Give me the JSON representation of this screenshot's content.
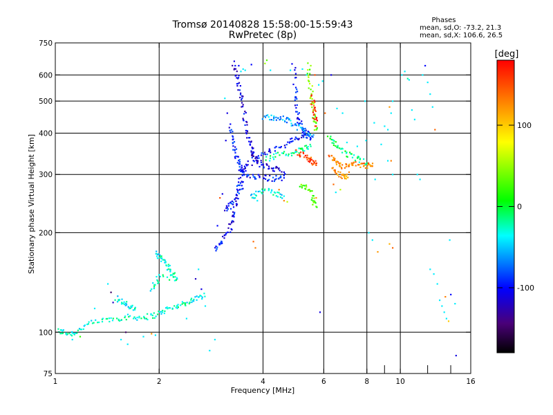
{
  "title_lines": [
    "Tromsø 20140828 15:58:00-15:59:43",
    "RwPretec (8p)"
  ],
  "phases_box": {
    "heading": "Phases",
    "line1": "mean, sd,O: -73.2, 21.3",
    "line2": "mean, sd,X: 106.6, 26.5"
  },
  "chart_data": {
    "type": "scatter",
    "xlabel": "Frequency [MHz]",
    "ylabel": "Stationary phase Virtual Height [km]",
    "x_scale": "log",
    "y_scale": "log",
    "xlim": [
      1,
      16
    ],
    "ylim": [
      75,
      750
    ],
    "xticks": [
      1,
      2,
      4,
      6,
      8,
      10,
      16
    ],
    "xminor": [
      9,
      12,
      14
    ],
    "yticks": [
      75,
      100,
      200,
      300,
      400,
      500,
      600,
      750
    ],
    "grid_x": [
      2,
      4,
      6,
      8,
      10
    ],
    "grid_y": [
      100,
      200,
      300,
      400,
      500,
      600
    ],
    "grid": true,
    "colorbar": {
      "label": "[deg]",
      "range": [
        -180,
        180
      ],
      "ticks": [
        100,
        0,
        -100
      ],
      "colormap": "rainbow"
    },
    "traces": [
      {
        "name": "",
        "color_deg": -30,
        "points": [
          [
            1.02,
            101
          ],
          [
            1.05,
            100
          ],
          [
            1.1,
            99
          ],
          [
            1.15,
            100
          ],
          [
            1.2,
            104
          ],
          [
            1.3,
            107
          ],
          [
            1.4,
            109
          ],
          [
            1.5,
            110
          ],
          [
            1.6,
            111
          ],
          [
            1.7,
            111
          ],
          [
            1.8,
            111
          ],
          [
            1.9,
            112
          ],
          [
            2.0,
            114
          ],
          [
            2.1,
            117
          ],
          [
            2.2,
            119
          ],
          [
            2.3,
            121
          ],
          [
            2.4,
            123
          ],
          [
            2.5,
            125
          ],
          [
            2.6,
            127
          ],
          [
            2.7,
            131
          ]
        ]
      },
      {
        "name": "",
        "color_deg": -40,
        "points": [
          [
            1.5,
            127
          ],
          [
            1.55,
            124
          ],
          [
            1.6,
            121
          ],
          [
            1.65,
            119
          ],
          [
            1.7,
            117
          ]
        ]
      },
      {
        "name": "",
        "color_deg": -30,
        "points": [
          [
            1.95,
            175
          ],
          [
            2.0,
            170
          ],
          [
            2.05,
            165
          ],
          [
            2.1,
            160
          ],
          [
            2.15,
            154
          ],
          [
            2.2,
            148
          ],
          [
            2.25,
            143
          ],
          [
            2.0,
            150
          ],
          [
            1.95,
            140
          ],
          [
            1.9,
            135
          ]
        ]
      },
      {
        "name": "",
        "color_deg": -100,
        "points": [
          [
            2.9,
            178
          ],
          [
            3.0,
            185
          ],
          [
            3.1,
            195
          ],
          [
            3.2,
            205
          ],
          [
            3.25,
            215
          ],
          [
            3.3,
            230
          ],
          [
            3.35,
            250
          ],
          [
            3.4,
            275
          ],
          [
            3.45,
            295
          ],
          [
            3.5,
            310
          ],
          [
            3.6,
            320
          ],
          [
            3.8,
            335
          ],
          [
            4.0,
            345
          ],
          [
            4.2,
            355
          ],
          [
            4.5,
            365
          ],
          [
            4.8,
            375
          ],
          [
            5.0,
            385
          ],
          [
            5.2,
            395
          ],
          [
            5.4,
            405
          ]
        ]
      },
      {
        "name": "",
        "color_deg": -110,
        "points": [
          [
            3.3,
            640
          ],
          [
            3.35,
            600
          ],
          [
            3.4,
            560
          ],
          [
            3.45,
            520
          ],
          [
            3.5,
            480
          ],
          [
            3.55,
            440
          ],
          [
            3.6,
            405
          ],
          [
            3.65,
            380
          ],
          [
            3.7,
            360
          ],
          [
            3.75,
            345
          ],
          [
            3.8,
            335
          ],
          [
            3.9,
            325
          ],
          [
            4.0,
            320
          ],
          [
            4.2,
            315
          ],
          [
            4.4,
            310
          ],
          [
            4.6,
            305
          ]
        ]
      },
      {
        "name": "",
        "color_deg": -95,
        "points": [
          [
            3.2,
            420
          ],
          [
            3.25,
            390
          ],
          [
            3.3,
            360
          ],
          [
            3.35,
            340
          ],
          [
            3.4,
            325
          ],
          [
            3.45,
            315
          ],
          [
            3.5,
            305
          ],
          [
            3.6,
            300
          ],
          [
            3.8,
            296
          ],
          [
            4.0,
            294
          ],
          [
            4.2,
            292
          ],
          [
            4.4,
            292
          ],
          [
            4.6,
            293
          ]
        ]
      },
      {
        "name": "",
        "color_deg": -95,
        "points": [
          [
            3.1,
            235
          ],
          [
            3.2,
            240
          ],
          [
            3.3,
            250
          ],
          [
            3.4,
            265
          ],
          [
            3.5,
            285
          ]
        ]
      },
      {
        "name": "",
        "color_deg": -95,
        "points": [
          [
            4.9,
            640
          ],
          [
            4.95,
            560
          ],
          [
            5.0,
            500
          ],
          [
            5.05,
            460
          ],
          [
            5.1,
            430
          ],
          [
            5.2,
            410
          ],
          [
            5.3,
            395
          ],
          [
            5.5,
            385
          ]
        ]
      },
      {
        "name": "",
        "color_deg": -60,
        "points": [
          [
            4.0,
            445
          ],
          [
            4.2,
            448
          ],
          [
            4.4,
            445
          ],
          [
            4.6,
            440
          ],
          [
            4.8,
            435
          ],
          [
            5.0,
            420
          ],
          [
            5.2,
            410
          ],
          [
            5.4,
            400
          ],
          [
            5.6,
            395
          ]
        ]
      },
      {
        "name": "",
        "color_deg": -20,
        "points": [
          [
            4.1,
            335
          ],
          [
            4.3,
            340
          ],
          [
            4.6,
            345
          ],
          [
            4.9,
            350
          ],
          [
            5.1,
            355
          ],
          [
            5.3,
            360
          ],
          [
            5.5,
            365
          ]
        ]
      },
      {
        "name": "",
        "color_deg": 40,
        "points": [
          [
            5.4,
            640
          ],
          [
            5.45,
            590
          ],
          [
            5.5,
            540
          ],
          [
            5.55,
            500
          ],
          [
            5.6,
            460
          ],
          [
            5.65,
            430
          ],
          [
            5.7,
            410
          ]
        ]
      },
      {
        "name": "",
        "color_deg": 150,
        "points": [
          [
            5.0,
            350
          ],
          [
            5.2,
            345
          ],
          [
            5.4,
            335
          ],
          [
            5.5,
            330
          ],
          [
            5.6,
            325
          ],
          [
            5.7,
            320
          ]
        ]
      },
      {
        "name": "",
        "color_deg": 160,
        "points": [
          [
            5.55,
            520
          ],
          [
            5.6,
            480
          ],
          [
            5.65,
            450
          ],
          [
            5.7,
            420
          ]
        ]
      },
      {
        "name": "",
        "color_deg": 130,
        "points": [
          [
            6.2,
            340
          ],
          [
            6.4,
            330
          ],
          [
            6.6,
            322
          ],
          [
            6.8,
            318
          ],
          [
            7.0,
            318
          ],
          [
            7.3,
            322
          ],
          [
            7.6,
            320
          ],
          [
            7.9,
            318
          ],
          [
            8.1,
            320
          ],
          [
            8.3,
            318
          ]
        ]
      },
      {
        "name": "",
        "color_deg": -10,
        "points": [
          [
            6.2,
            390
          ],
          [
            6.4,
            375
          ],
          [
            6.6,
            365
          ],
          [
            6.9,
            350
          ],
          [
            7.2,
            340
          ],
          [
            7.6,
            330
          ],
          [
            8.0,
            325
          ]
        ]
      },
      {
        "name": "",
        "color_deg": 120,
        "points": [
          [
            6.3,
            310
          ],
          [
            6.5,
            305
          ],
          [
            6.7,
            298
          ],
          [
            6.9,
            295
          ],
          [
            7.0,
            300
          ]
        ]
      },
      {
        "name": "",
        "color_deg": -35,
        "points": [
          [
            3.7,
            255
          ],
          [
            3.8,
            262
          ],
          [
            4.0,
            270
          ],
          [
            4.2,
            265
          ],
          [
            4.4,
            262
          ],
          [
            4.6,
            258
          ]
        ]
      },
      {
        "name": "",
        "color_deg": 30,
        "points": [
          [
            5.1,
            280
          ],
          [
            5.3,
            275
          ],
          [
            5.5,
            265
          ],
          [
            5.6,
            250
          ],
          [
            5.7,
            240
          ]
        ]
      }
    ],
    "points": [
      [
        1.12,
        95,
        -40
      ],
      [
        1.18,
        97,
        20
      ],
      [
        1.3,
        118,
        -40
      ],
      [
        1.42,
        140,
        -40
      ],
      [
        1.45,
        132,
        -150
      ],
      [
        1.47,
        123,
        -120
      ],
      [
        1.55,
        95,
        -40
      ],
      [
        1.6,
        100,
        -150
      ],
      [
        1.62,
        92,
        -40
      ],
      [
        1.7,
        118,
        -10
      ],
      [
        1.8,
        97,
        -40
      ],
      [
        1.9,
        99,
        120
      ],
      [
        1.95,
        98,
        -40
      ],
      [
        2.4,
        110,
        -40
      ],
      [
        2.55,
        145,
        -120
      ],
      [
        2.6,
        155,
        -40
      ],
      [
        2.65,
        135,
        -110
      ],
      [
        2.8,
        88,
        -40
      ],
      [
        2.9,
        95,
        -40
      ],
      [
        2.72,
        120,
        -40
      ],
      [
        2.95,
        210,
        -100
      ],
      [
        3.0,
        255,
        150
      ],
      [
        3.05,
        262,
        -110
      ],
      [
        3.12,
        380,
        -110
      ],
      [
        3.1,
        510,
        -40
      ],
      [
        3.15,
        460,
        -110
      ],
      [
        3.3,
        660,
        -110
      ],
      [
        3.4,
        640,
        -100
      ],
      [
        3.45,
        615,
        -40
      ],
      [
        3.5,
        625,
        -40
      ],
      [
        3.55,
        620,
        -40
      ],
      [
        3.7,
        645,
        -100
      ],
      [
        3.75,
        188,
        140
      ],
      [
        3.8,
        180,
        130
      ],
      [
        3.85,
        250,
        -40
      ],
      [
        4.05,
        650,
        50
      ],
      [
        4.1,
        665,
        30
      ],
      [
        4.2,
        620,
        -40
      ],
      [
        4.3,
        450,
        -40
      ],
      [
        4.45,
        270,
        130
      ],
      [
        4.6,
        250,
        130
      ],
      [
        4.7,
        248,
        60
      ],
      [
        4.8,
        620,
        -40
      ],
      [
        5.2,
        625,
        -40
      ],
      [
        5.35,
        600,
        -40
      ],
      [
        5.5,
        640,
        50
      ],
      [
        5.5,
        490,
        130
      ],
      [
        5.6,
        470,
        130
      ],
      [
        5.65,
        600,
        150
      ],
      [
        5.8,
        560,
        -40
      ],
      [
        5.95,
        575,
        -40
      ],
      [
        5.85,
        115,
        -110
      ],
      [
        5.7,
        255,
        120
      ],
      [
        6.3,
        600,
        -110
      ],
      [
        6.05,
        460,
        140
      ],
      [
        6.4,
        280,
        140
      ],
      [
        6.5,
        265,
        -40
      ],
      [
        6.7,
        270,
        60
      ],
      [
        6.55,
        475,
        -40
      ],
      [
        6.8,
        460,
        -40
      ],
      [
        7.0,
        375,
        -40
      ],
      [
        7.1,
        305,
        130
      ],
      [
        7.5,
        365,
        -40
      ],
      [
        7.55,
        340,
        -20
      ],
      [
        7.9,
        500,
        -40
      ],
      [
        7.95,
        380,
        -40
      ],
      [
        8.4,
        430,
        -40
      ],
      [
        8.1,
        200,
        -40
      ],
      [
        8.3,
        190,
        -40
      ],
      [
        8.45,
        290,
        -40
      ],
      [
        8.6,
        175,
        120
      ],
      [
        8.8,
        370,
        -40
      ],
      [
        9.2,
        410,
        -40
      ],
      [
        9.3,
        480,
        120
      ],
      [
        9.4,
        460,
        -40
      ],
      [
        9.5,
        500,
        -40
      ],
      [
        9.3,
        185,
        110
      ],
      [
        9.5,
        180,
        140
      ],
      [
        9.0,
        420,
        -40
      ],
      [
        9.2,
        330,
        -40
      ],
      [
        9.4,
        330,
        130
      ],
      [
        9.5,
        300,
        -40
      ],
      [
        10.1,
        600,
        -40
      ],
      [
        10.3,
        615,
        -40
      ],
      [
        10.5,
        585,
        -20
      ],
      [
        10.6,
        580,
        -40
      ],
      [
        10.8,
        470,
        -40
      ],
      [
        11.0,
        440,
        -40
      ],
      [
        11.2,
        300,
        -40
      ],
      [
        11.4,
        290,
        -40
      ],
      [
        11.6,
        600,
        -40
      ],
      [
        11.8,
        640,
        -100
      ],
      [
        12.0,
        570,
        -40
      ],
      [
        12.2,
        525,
        -40
      ],
      [
        12.4,
        480,
        -40
      ],
      [
        12.6,
        410,
        140
      ],
      [
        12.2,
        155,
        -40
      ],
      [
        12.5,
        150,
        -40
      ],
      [
        12.8,
        140,
        -40
      ],
      [
        13.0,
        125,
        -40
      ],
      [
        13.2,
        120,
        -40
      ],
      [
        13.4,
        115,
        -40
      ],
      [
        13.6,
        110,
        -40
      ],
      [
        13.8,
        108,
        100
      ],
      [
        13.5,
        128,
        130
      ],
      [
        14.0,
        130,
        -100
      ],
      [
        14.4,
        122,
        -40
      ],
      [
        13.9,
        190,
        -40
      ],
      [
        14.5,
        85,
        -110
      ]
    ]
  }
}
